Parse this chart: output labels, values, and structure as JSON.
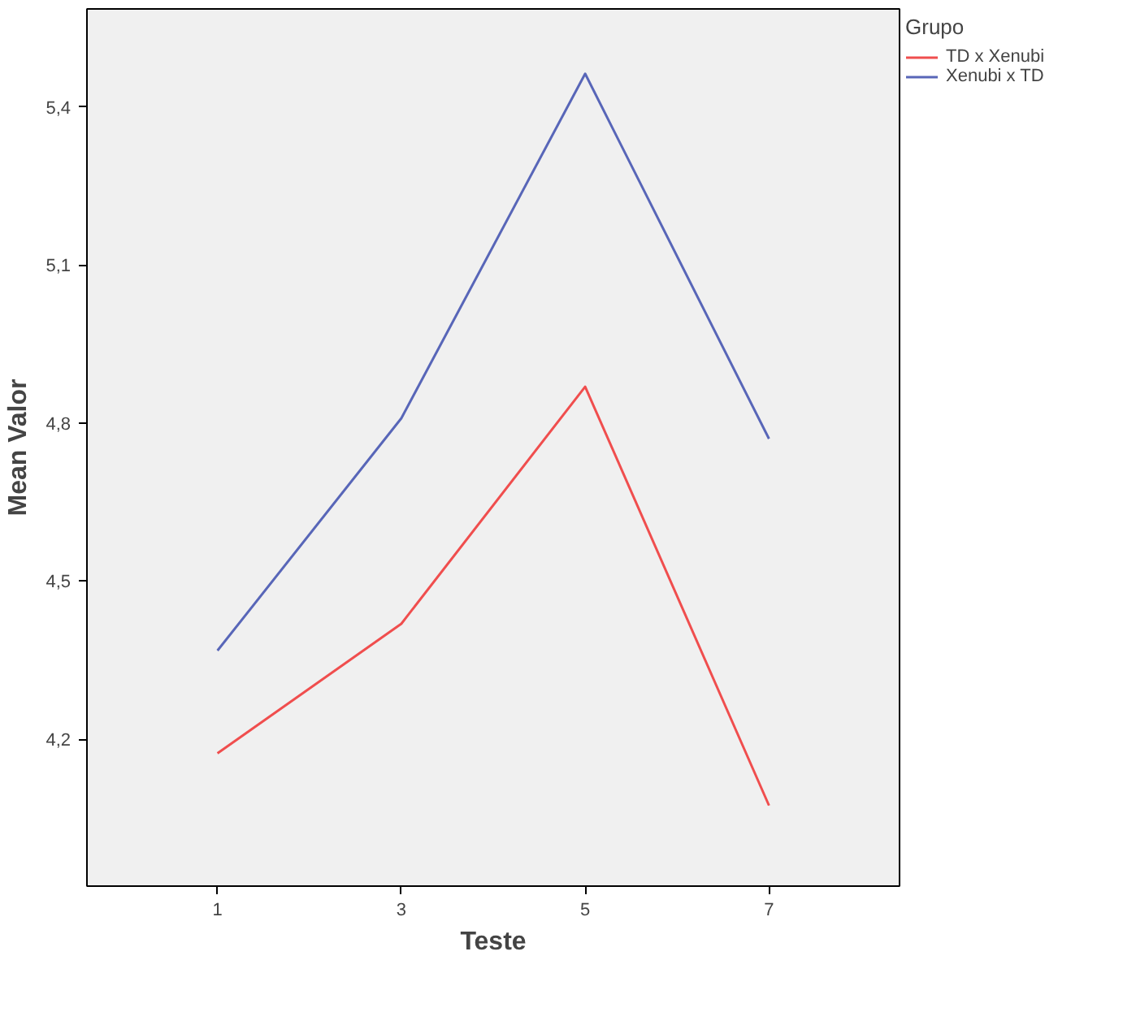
{
  "chart_data": {
    "type": "line",
    "xlabel": "Teste",
    "ylabel": "Mean Valor",
    "legend_title": "Grupo",
    "categories": [
      "1",
      "3",
      "5",
      "7"
    ],
    "series": [
      {
        "name": "TD x Xenubi",
        "color": "#f04e4e",
        "values": [
          4.173,
          4.419,
          4.869,
          4.074
        ]
      },
      {
        "name": "Xenubi x TD",
        "color": "#5866b8",
        "values": [
          4.368,
          4.809,
          5.463,
          4.77
        ]
      }
    ],
    "ylim": [
      3.921,
      5.586
    ],
    "yticks": [
      {
        "value": 4.2,
        "label": "4,2"
      },
      {
        "value": 4.5,
        "label": "4,5"
      },
      {
        "value": 4.8,
        "label": "4,8"
      },
      {
        "value": 5.1,
        "label": "5,1"
      },
      {
        "value": 5.4,
        "label": "5,4"
      }
    ],
    "grid": false,
    "legend": "top right",
    "marker": "none",
    "line_style": "solid"
  }
}
